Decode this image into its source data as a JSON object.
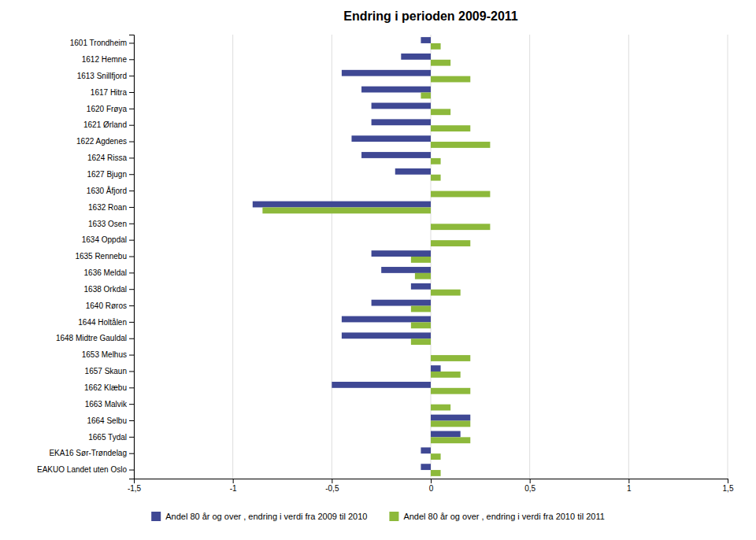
{
  "chart_data": {
    "type": "bar",
    "orientation": "horizontal",
    "title": "Endring i perioden 2009-2011",
    "categories": [
      "1601 Trondheim",
      "1612 Hemne",
      "1613 Snillfjord",
      "1617 Hitra",
      "1620 Frøya",
      "1621 Ørland",
      "1622 Agdenes",
      "1624 Rissa",
      "1627 Bjugn",
      "1630 Åfjord",
      "1632 Roan",
      "1633 Osen",
      "1634 Oppdal",
      "1635 Rennebu",
      "1636 Meldal",
      "1638 Orkdal",
      "1640 Røros",
      "1644 Holtålen",
      "1648 Midtre Gauldal",
      "1653 Melhus",
      "1657 Skaun",
      "1662 Klæbu",
      "1663 Malvik",
      "1664 Selbu",
      "1665 Tydal",
      "EKA16 Sør-Trøndelag",
      "EAKUO Landet uten Oslo"
    ],
    "series": [
      {
        "name": "Andel 80 år og over , endring i verdi fra 2009 til 2010",
        "color": "#3f4894",
        "values": [
          -0.05,
          -0.15,
          -0.45,
          -0.35,
          -0.3,
          -0.3,
          -0.4,
          -0.35,
          -0.18,
          0.0,
          -0.9,
          0.0,
          0.0,
          -0.3,
          -0.25,
          -0.1,
          -0.3,
          -0.45,
          -0.45,
          0.0,
          0.05,
          -0.5,
          0.0,
          0.2,
          0.15,
          -0.05,
          -0.05
        ]
      },
      {
        "name": "Andel 80 år og over , endring i verdi fra 2010 til 2011",
        "color": "#8db93b",
        "values": [
          0.05,
          0.1,
          0.2,
          -0.05,
          0.1,
          0.2,
          0.3,
          0.05,
          0.05,
          0.3,
          -0.85,
          0.3,
          0.2,
          -0.1,
          -0.08,
          0.15,
          -0.1,
          -0.1,
          -0.1,
          0.2,
          0.15,
          0.2,
          0.1,
          0.2,
          0.2,
          0.05,
          0.05
        ]
      }
    ],
    "xlim": [
      -1.5,
      1.5
    ],
    "xticks": [
      {
        "value": -1.5,
        "label": "-1,5"
      },
      -1,
      {
        "value": -0.5,
        "label": "-0,5"
      },
      0,
      {
        "value": 0.5,
        "label": "0,5"
      },
      1,
      {
        "value": 1.5,
        "label": "1,5"
      }
    ],
    "grid": true,
    "legend": "bottom"
  }
}
